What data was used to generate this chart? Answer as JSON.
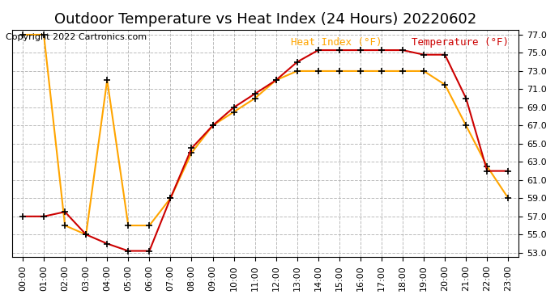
{
  "title": "Outdoor Temperature vs Heat Index (24 Hours) 20220602",
  "copyright": "Copyright 2022 Cartronics.com",
  "legend_heat_index": "Heat Index (°F)",
  "legend_temperature": "Temperature (°F)",
  "hours": [
    "00:00",
    "01:00",
    "02:00",
    "03:00",
    "04:00",
    "05:00",
    "06:00",
    "07:00",
    "08:00",
    "09:00",
    "10:00",
    "11:00",
    "12:00",
    "13:00",
    "14:00",
    "15:00",
    "16:00",
    "17:00",
    "18:00",
    "19:00",
    "20:00",
    "21:00",
    "22:00",
    "23:00"
  ],
  "heat_index": [
    77.0,
    77.0,
    56.0,
    55.0,
    72.0,
    56.0,
    56.0,
    59.0,
    64.0,
    67.0,
    68.5,
    70.0,
    72.0,
    73.0,
    73.0,
    73.0,
    73.0,
    73.0,
    73.0,
    73.0,
    71.5,
    67.0,
    62.5,
    59.0
  ],
  "temperature": [
    57.0,
    57.0,
    57.5,
    55.0,
    54.0,
    53.2,
    53.2,
    59.0,
    64.5,
    67.0,
    69.0,
    70.5,
    72.0,
    74.0,
    75.3,
    75.3,
    75.3,
    75.3,
    75.3,
    74.8,
    74.8,
    70.0,
    62.0,
    62.0
  ],
  "heat_index_color": "#FFA500",
  "temperature_color": "#CC0000",
  "marker_color": "black",
  "background_color": "#ffffff",
  "grid_color": "#aaaaaa",
  "ylim_min": 53.0,
  "ylim_max": 77.0,
  "ytick_step": 2.0,
  "title_fontsize": 13,
  "copyright_fontsize": 8,
  "legend_fontsize": 9,
  "tick_fontsize": 8
}
